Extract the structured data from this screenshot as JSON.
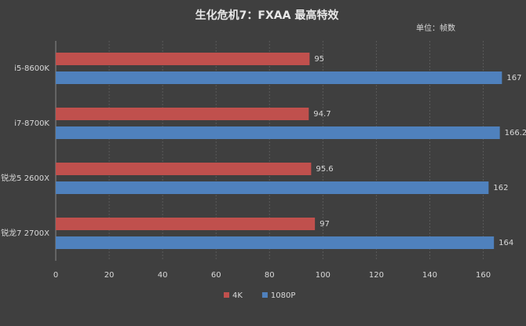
{
  "chart_data": {
    "type": "hbar",
    "title": "生化危机7：FXAA 最高特效",
    "subtitle": "单位：帧数",
    "categories": [
      "i5-8600K",
      "i7-8700K",
      "锐龙5 2600X",
      "锐龙7 2700X"
    ],
    "series": [
      {
        "name": "4K",
        "color": "#c0504d",
        "values": [
          95,
          94.7,
          95.6,
          97
        ]
      },
      {
        "name": "1080P",
        "color": "#4f81bd",
        "values": [
          167,
          166.2,
          162,
          164
        ]
      }
    ],
    "xlim": [
      0,
      176
    ],
    "xticks": [
      0,
      20,
      40,
      60,
      80,
      100,
      120,
      140,
      160
    ],
    "grid": true,
    "legend": "bottom"
  }
}
